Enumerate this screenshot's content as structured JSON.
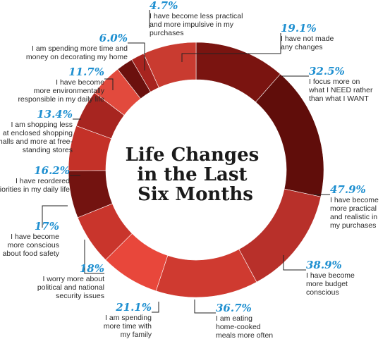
{
  "chart_data": {
    "type": "donut",
    "title": [
      "Life Changes",
      "in the Last",
      "Six Months"
    ],
    "segments": [
      {
        "value": 32.5,
        "value_label": "32.5%",
        "label": [
          "I focus more on",
          "what I NEED rather",
          "than what I WANT"
        ],
        "color": "#7a1410"
      },
      {
        "value": 47.9,
        "value_label": "47.9%",
        "label": [
          "I have become",
          "more practical",
          "and realistic in",
          "my purchases"
        ],
        "color": "#600d0a"
      },
      {
        "value": 38.9,
        "value_label": "38.9%",
        "label": [
          "I have become",
          "more budget",
          "conscious"
        ],
        "color": "#b8302a"
      },
      {
        "value": 36.7,
        "value_label": "36.7%",
        "label": [
          "I am eating",
          "home-cooked",
          "meals more often"
        ],
        "color": "#cf3a30"
      },
      {
        "value": 21.1,
        "value_label": "21.1%",
        "label": [
          "I am spending",
          "more time with",
          "my family"
        ],
        "color": "#e8473b"
      },
      {
        "value": 18,
        "value_label": "18%",
        "label": [
          "I worry more about",
          "political and national",
          "security issues"
        ],
        "color": "#c9352c"
      },
      {
        "value": 17,
        "value_label": "17%",
        "label": [
          "I have become",
          "more conscious",
          "about food safety"
        ],
        "color": "#731310"
      },
      {
        "value": 16.2,
        "value_label": "16.2%",
        "label": [
          "I have reordered",
          "priorities in my daily life"
        ],
        "color": "#c43128"
      },
      {
        "value": 13.4,
        "value_label": "13.4%",
        "label": [
          "I am shopping less",
          "at enclosed shopping",
          "malls and more at free-",
          "standing stores"
        ],
        "color": "#a72520"
      },
      {
        "value": 11.7,
        "value_label": "11.7%",
        "label": [
          "I have become",
          "more environmentally",
          "responsible in my daily life"
        ],
        "color": "#e24a3d"
      },
      {
        "value": 6.0,
        "value_label": "6.0%",
        "label": [
          "I am spending more time and",
          "money on decorating my home"
        ],
        "color": "#6b110e"
      },
      {
        "value": 4.7,
        "value_label": "4.7%",
        "label": [
          "I have become less practical",
          "and more impulsive in my",
          "purchases"
        ],
        "color": "#a7241f"
      },
      {
        "value": 19.1,
        "value_label": "19.1%",
        "label": [
          "I have not made",
          "any changes"
        ],
        "color": "#c93b30"
      }
    ]
  }
}
